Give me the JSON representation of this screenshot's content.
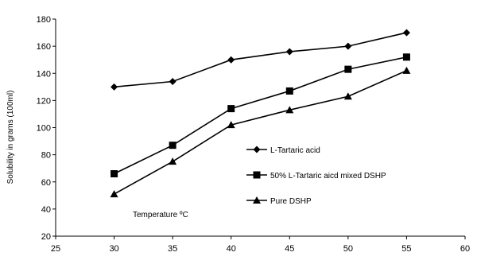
{
  "chart_data": {
    "type": "line",
    "title": "",
    "xlabel": "",
    "ylabel": "Solubility in grams (100ml)",
    "annotation": "Temperature ºC",
    "xlim": [
      25,
      60
    ],
    "ylim": [
      20,
      180
    ],
    "x_ticks": [
      "25",
      "30",
      "35",
      "40",
      "45",
      "50",
      "55",
      "60"
    ],
    "y_ticks": [
      "20",
      "40",
      "60",
      "80",
      "100",
      "120",
      "140",
      "160",
      "180"
    ],
    "grid": false,
    "legend_position": "center-right",
    "x": [
      30,
      35,
      40,
      45,
      50,
      55
    ],
    "series": [
      {
        "name": "L-Tartaric acid",
        "marker": "diamond",
        "values": [
          130,
          134,
          150,
          156,
          160,
          170
        ]
      },
      {
        "name": "50% L-Tartaric aicd mixed DSHP",
        "marker": "square",
        "values": [
          66,
          87,
          114,
          127,
          143,
          152
        ]
      },
      {
        "name": "Pure DSHP",
        "marker": "triangle",
        "values": [
          51,
          75,
          102,
          113,
          123,
          142
        ]
      }
    ],
    "colors": {
      "line": "#000000",
      "axis": "#000000",
      "background": "#ffffff"
    }
  }
}
